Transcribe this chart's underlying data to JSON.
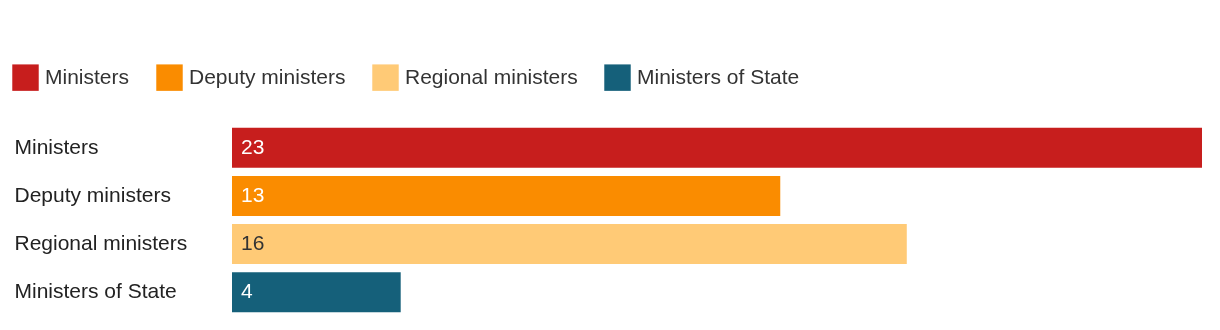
{
  "chart_data": {
    "type": "bar",
    "orientation": "horizontal",
    "categories": [
      "Ministers",
      "Deputy ministers",
      "Regional ministers",
      "Ministers of State"
    ],
    "series": [
      {
        "name": "Ministers",
        "color": "#c71e1d",
        "values": [
          23,
          null,
          null,
          null
        ]
      },
      {
        "name": "Deputy ministers",
        "color": "#fa8c00",
        "values": [
          null,
          13,
          null,
          null
        ]
      },
      {
        "name": "Regional ministers",
        "color": "#ffca76",
        "values": [
          null,
          null,
          16,
          null
        ]
      },
      {
        "name": "Ministers of State",
        "color": "#15607a",
        "values": [
          null,
          null,
          null,
          4
        ]
      }
    ],
    "data_labels": true,
    "legend": "top left",
    "grid": false
  }
}
